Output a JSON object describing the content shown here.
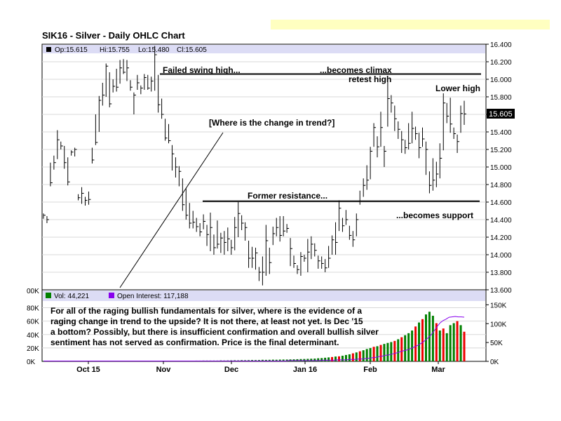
{
  "title": "SIK16 - Silver - Daily OHLC Chart",
  "colors": {
    "header_band": "#dcdcf5",
    "volume": "#008000",
    "open_interest": "#8800ee",
    "volume_down": "#ee0000",
    "bar": "#000000",
    "banner": "#ffffc0"
  },
  "chart_data": [
    {
      "type": "ohlc",
      "legend": {
        "op": "Op:15.615",
        "hi": "Hi:15.755",
        "lo": "Lo:15.480",
        "cl": "Cl:15.605"
      },
      "ylim": [
        13.6,
        16.4
      ],
      "y_ticks": [
        "16.400",
        "16.200",
        "16.000",
        "15.800",
        "15.600",
        "15.400",
        "15.200",
        "15.000",
        "14.800",
        "14.600",
        "14.400",
        "14.200",
        "14.000",
        "13.800",
        "13.600"
      ],
      "last_price": "15.605",
      "x_labels": [
        "Oct 15",
        "Nov",
        "Dec",
        "Jan 16",
        "Feb",
        "Mar"
      ],
      "annotations": {
        "failed_swing": "Failed swing high...",
        "becomes_climax": "...becomes climax",
        "retest_high": "retest high",
        "lower_high": "Lower high",
        "change_in_trend": "[Where is the change in trend?]",
        "former_resistance": "Former resistance...",
        "becomes_support": "...becomes support"
      },
      "resistance_level": 16.06,
      "support_level": 14.61,
      "bars": [
        [
          14.47,
          14.41,
          14.45
        ],
        [
          14.44,
          14.36,
          14.4
        ],
        [
          15.05,
          14.78,
          14.82
        ],
        [
          15.13,
          14.97,
          15.05
        ],
        [
          15.42,
          15.09,
          15.31
        ],
        [
          15.29,
          15.2,
          15.24
        ],
        [
          15.24,
          14.98,
          15.05
        ],
        [
          15.11,
          14.79,
          14.83
        ],
        [
          15.19,
          15.13,
          15.17
        ],
        [
          15.22,
          15.12,
          15.2
        ],
        [
          14.69,
          14.62,
          14.65
        ],
        [
          14.77,
          14.58,
          14.7
        ],
        [
          14.66,
          14.56,
          14.62
        ],
        [
          14.72,
          14.57,
          14.63
        ],
        [
          15.22,
          15.04,
          15.08
        ],
        [
          15.6,
          15.25,
          15.28
        ],
        [
          15.81,
          15.4,
          15.76
        ],
        [
          15.96,
          15.7,
          15.82
        ],
        [
          16.18,
          15.8,
          16.15
        ],
        [
          16.08,
          15.68,
          15.72
        ],
        [
          16.0,
          15.85,
          15.92
        ],
        [
          16.12,
          15.86,
          15.91
        ],
        [
          16.22,
          15.95,
          16.13
        ],
        [
          16.23,
          16.06,
          16.08
        ],
        [
          16.22,
          15.98,
          16.13
        ],
        [
          15.99,
          15.87,
          15.91
        ],
        [
          15.85,
          15.6,
          15.82
        ],
        [
          16.05,
          15.88,
          15.96
        ],
        [
          15.93,
          15.83,
          15.9
        ],
        [
          16.06,
          15.88,
          16.02
        ],
        [
          16.05,
          15.88,
          15.9
        ],
        [
          16.03,
          15.86,
          15.98
        ],
        [
          16.38,
          15.87,
          16.28
        ],
        [
          16.05,
          15.62,
          15.71
        ],
        [
          15.78,
          15.55,
          15.6
        ],
        [
          15.55,
          15.3,
          15.33
        ],
        [
          15.49,
          15.27,
          15.3
        ],
        [
          15.25,
          14.96,
          15.15
        ],
        [
          15.11,
          14.88,
          15.0
        ],
        [
          15.01,
          14.78,
          14.95
        ],
        [
          14.87,
          14.5,
          14.57
        ],
        [
          14.76,
          14.4,
          14.45
        ],
        [
          14.59,
          14.3,
          14.36
        ],
        [
          14.5,
          14.3,
          14.37
        ],
        [
          14.42,
          14.26,
          14.32
        ],
        [
          14.36,
          14.21,
          14.26
        ],
        [
          14.46,
          14.29,
          14.38
        ],
        [
          14.34,
          14.1,
          14.23
        ],
        [
          14.48,
          14.04,
          14.31
        ],
        [
          14.23,
          14.0,
          14.08
        ],
        [
          14.39,
          14.07,
          14.12
        ],
        [
          14.25,
          14.02,
          14.19
        ],
        [
          14.27,
          14.0,
          14.14
        ],
        [
          14.31,
          14.04,
          14.18
        ],
        [
          14.17,
          14.0,
          14.08
        ],
        [
          14.43,
          14.05,
          14.31
        ],
        [
          14.6,
          14.2,
          14.47
        ],
        [
          14.45,
          14.28,
          14.36
        ],
        [
          14.37,
          14.16,
          14.31
        ],
        [
          14.16,
          13.85,
          13.96
        ],
        [
          14.09,
          13.85,
          13.96
        ],
        [
          14.08,
          13.83,
          14.02
        ],
        [
          13.86,
          13.7,
          13.8
        ],
        [
          13.98,
          13.65,
          13.8
        ],
        [
          14.34,
          13.76,
          14.16
        ],
        [
          14.08,
          13.78,
          13.91
        ],
        [
          14.32,
          14.11,
          14.24
        ],
        [
          14.42,
          14.21,
          14.31
        ],
        [
          14.44,
          14.15,
          14.22
        ],
        [
          14.44,
          14.21,
          14.27
        ],
        [
          14.35,
          14.25,
          14.3
        ],
        [
          14.19,
          13.87,
          14.07
        ],
        [
          13.99,
          13.85,
          13.9
        ],
        [
          13.88,
          13.78,
          13.83
        ],
        [
          14.03,
          13.76,
          13.98
        ],
        [
          14.0,
          13.92,
          13.96
        ],
        [
          14.18,
          13.8,
          14.03
        ],
        [
          14.21,
          13.95,
          14.12
        ],
        [
          14.13,
          13.98,
          14.05
        ],
        [
          13.99,
          13.84,
          13.93
        ],
        [
          13.98,
          13.84,
          13.9
        ],
        [
          13.95,
          13.8,
          13.85
        ],
        [
          14.1,
          13.85,
          13.96
        ],
        [
          14.22,
          14.0,
          14.17
        ],
        [
          14.37,
          14.0,
          14.14
        ],
        [
          14.62,
          14.27,
          14.53
        ],
        [
          14.42,
          14.26,
          14.33
        ],
        [
          14.51,
          14.34,
          14.4
        ],
        [
          14.33,
          14.17,
          14.22
        ],
        [
          14.27,
          14.09,
          14.17
        ],
        [
          14.47,
          14.21,
          14.4
        ],
        [
          14.73,
          14.57,
          14.61
        ],
        [
          14.87,
          14.66,
          14.79
        ],
        [
          15.02,
          14.74,
          14.85
        ],
        [
          15.23,
          14.86,
          15.18
        ],
        [
          15.5,
          15.23,
          15.45
        ],
        [
          15.35,
          15.11,
          15.23
        ],
        [
          15.63,
          15.23,
          15.45
        ],
        [
          15.24,
          15.0,
          15.18
        ],
        [
          15.99,
          15.46,
          15.78
        ],
        [
          15.82,
          15.62,
          15.73
        ],
        [
          15.7,
          15.41,
          15.55
        ],
        [
          15.52,
          15.32,
          15.43
        ],
        [
          15.41,
          15.16,
          15.31
        ],
        [
          15.31,
          15.15,
          15.22
        ],
        [
          15.5,
          15.2,
          15.27
        ],
        [
          15.63,
          15.27,
          15.44
        ],
        [
          15.46,
          15.31,
          15.38
        ],
        [
          15.39,
          15.1,
          15.22
        ],
        [
          15.45,
          15.23,
          15.32
        ],
        [
          15.29,
          14.91,
          15.2
        ],
        [
          14.95,
          14.7,
          14.79
        ],
        [
          15.1,
          14.73,
          14.85
        ],
        [
          15.06,
          14.77,
          14.92
        ],
        [
          15.27,
          14.87,
          15.1
        ],
        [
          15.84,
          15.19,
          15.73
        ],
        [
          15.73,
          15.5,
          15.58
        ],
        [
          15.79,
          15.39,
          15.49
        ],
        [
          15.45,
          15.32,
          15.38
        ],
        [
          15.37,
          15.16,
          15.29
        ],
        [
          15.7,
          15.39,
          15.61
        ],
        [
          15.755,
          15.48,
          15.605
        ]
      ]
    },
    {
      "type": "bar+line",
      "legend": {
        "vol": "Vol: 44,221",
        "oi": "Open Interest: 117,188"
      },
      "left_axis_label": "00K",
      "left_ticks": [
        "80K",
        "60K",
        "40K",
        "20K",
        "0K"
      ],
      "right_ticks": [
        "150K",
        "100K",
        "50K",
        "0K"
      ],
      "volume_k": [
        0.3,
        0.3,
        0.3,
        0.3,
        0.3,
        0.4,
        0.3,
        0.4,
        0.4,
        0.3,
        0.3,
        0.4,
        0.3,
        0.4,
        0.4,
        0.3,
        0.4,
        0.4,
        0.5,
        0.4,
        0.4,
        0.5,
        0.5,
        0.4,
        0.5,
        0.5,
        0.6,
        0.6,
        0.5,
        0.6,
        0.6,
        0.6,
        0.7,
        0.6,
        0.7,
        0.7,
        0.7,
        0.8,
        0.8,
        0.9,
        1.0,
        0.9,
        1.0,
        1.0,
        1.1,
        1.1,
        1.2,
        1.2,
        1.2,
        1.2,
        1.2,
        1.4,
        1.3,
        1.4,
        1.5,
        1.6,
        1.5,
        1.8,
        1.7,
        1.8,
        2.0,
        1.9,
        2.0,
        2.3,
        2.2,
        2.3,
        2.5,
        2.4,
        2.6,
        2.7,
        2.7,
        2.9,
        3.0,
        3.2,
        3.4,
        3.5,
        3.7,
        3.9,
        4.1,
        4.6,
        4.9,
        5.4,
        5.9,
        6.5,
        7.2,
        7.5,
        8.4,
        9.5,
        10.5,
        12.0,
        13.3,
        15.0,
        16.6,
        18.4,
        19.8,
        21.7,
        22.6,
        24.5,
        26.0,
        27.5,
        28.8,
        30.5,
        33.0,
        36.0,
        39.0,
        42.0,
        46.0,
        52.0,
        58.0,
        63.0,
        70.0,
        74.0,
        68.0,
        57.0,
        46.0,
        49.0,
        42.0,
        54.0,
        57.0,
        60.0,
        54.0,
        44.2
      ],
      "open_interest_k": [
        1,
        1,
        1,
        1,
        1,
        1,
        1,
        1,
        1,
        1,
        1,
        1,
        1,
        1,
        1,
        1,
        1,
        1,
        1,
        1,
        1,
        1,
        1,
        1,
        1,
        1,
        1,
        1,
        1,
        1,
        1,
        1,
        1,
        1,
        1,
        1,
        1,
        1,
        1,
        1,
        1,
        1,
        1,
        1,
        1,
        1,
        1,
        1,
        1,
        1,
        1,
        1,
        1,
        1,
        1,
        1,
        1,
        1,
        1,
        1,
        1,
        1,
        1,
        1,
        1,
        1,
        1,
        1,
        1,
        1,
        1,
        1,
        1,
        1,
        1,
        1,
        1,
        1,
        1,
        1,
        1,
        2,
        2,
        2,
        2,
        2,
        2,
        2,
        2,
        2,
        2,
        2,
        3,
        3,
        3,
        3,
        3,
        4,
        4,
        4,
        4,
        5,
        5,
        5,
        6,
        6,
        7,
        8,
        9,
        10,
        11,
        13,
        14,
        16,
        17,
        19,
        21,
        23,
        26,
        28,
        30,
        33,
        36,
        40,
        44,
        49,
        55,
        62,
        70,
        80,
        92,
        102,
        108,
        112,
        117,
        118,
        119,
        118,
        118,
        117.188
      ],
      "comment": "For all of the raging bullish fundamentals for silver, where is the evidence of a raging change in trend to the upside?  It is not there, at least not yet.  Is Dec '15 a bottom?  Possibly, but there is insufficient confirmation and overall bullish silver sentiment has not served as confirmation.  Price is  the final determinant.",
      "comment_lines": [
        "For all of the raging bullish fundamentals for silver, where is the evidence of a",
        "raging change in trend to the upside?  It is not there, at least not yet.  Is Dec '15",
        "a bottom?  Possibly, but there is insufficient confirmation and overall bullish silver",
        "sentiment has not served as confirmation.  Price is  the final determinant."
      ]
    }
  ]
}
